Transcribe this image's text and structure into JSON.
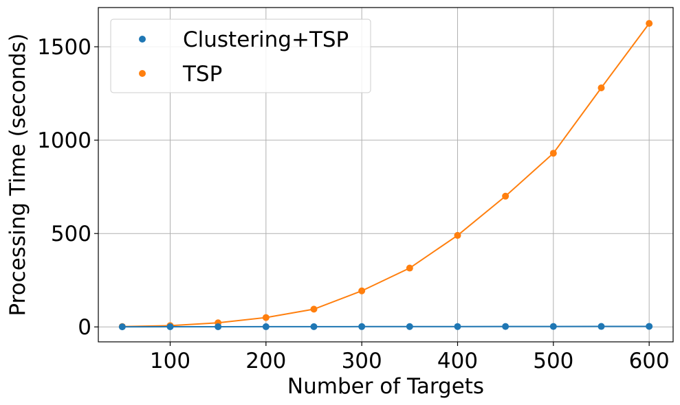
{
  "chart_data": {
    "type": "line",
    "title": "",
    "xlabel": "Number of Targets",
    "ylabel": "Processing Time (seconds)",
    "xlim": [
      25,
      625
    ],
    "ylim": [
      -80,
      1710
    ],
    "xticks": [
      100,
      200,
      300,
      400,
      500,
      600
    ],
    "yticks": [
      0,
      500,
      1000,
      1500
    ],
    "grid": true,
    "legend_position": "top-left",
    "x": [
      50,
      100,
      150,
      200,
      250,
      300,
      350,
      400,
      450,
      500,
      550,
      600
    ],
    "series": [
      {
        "name": "Clustering+TSP",
        "color": "#1f77b4",
        "values": [
          0.5,
          0.8,
          1.0,
          1.2,
          1.4,
          1.6,
          1.8,
          2.0,
          2.2,
          2.4,
          2.6,
          2.8
        ]
      },
      {
        "name": "TSP",
        "color": "#ff7f0e",
        "values": [
          2,
          7,
          22,
          50,
          95,
          193,
          315,
          490,
          700,
          930,
          1280,
          1625
        ]
      }
    ]
  }
}
